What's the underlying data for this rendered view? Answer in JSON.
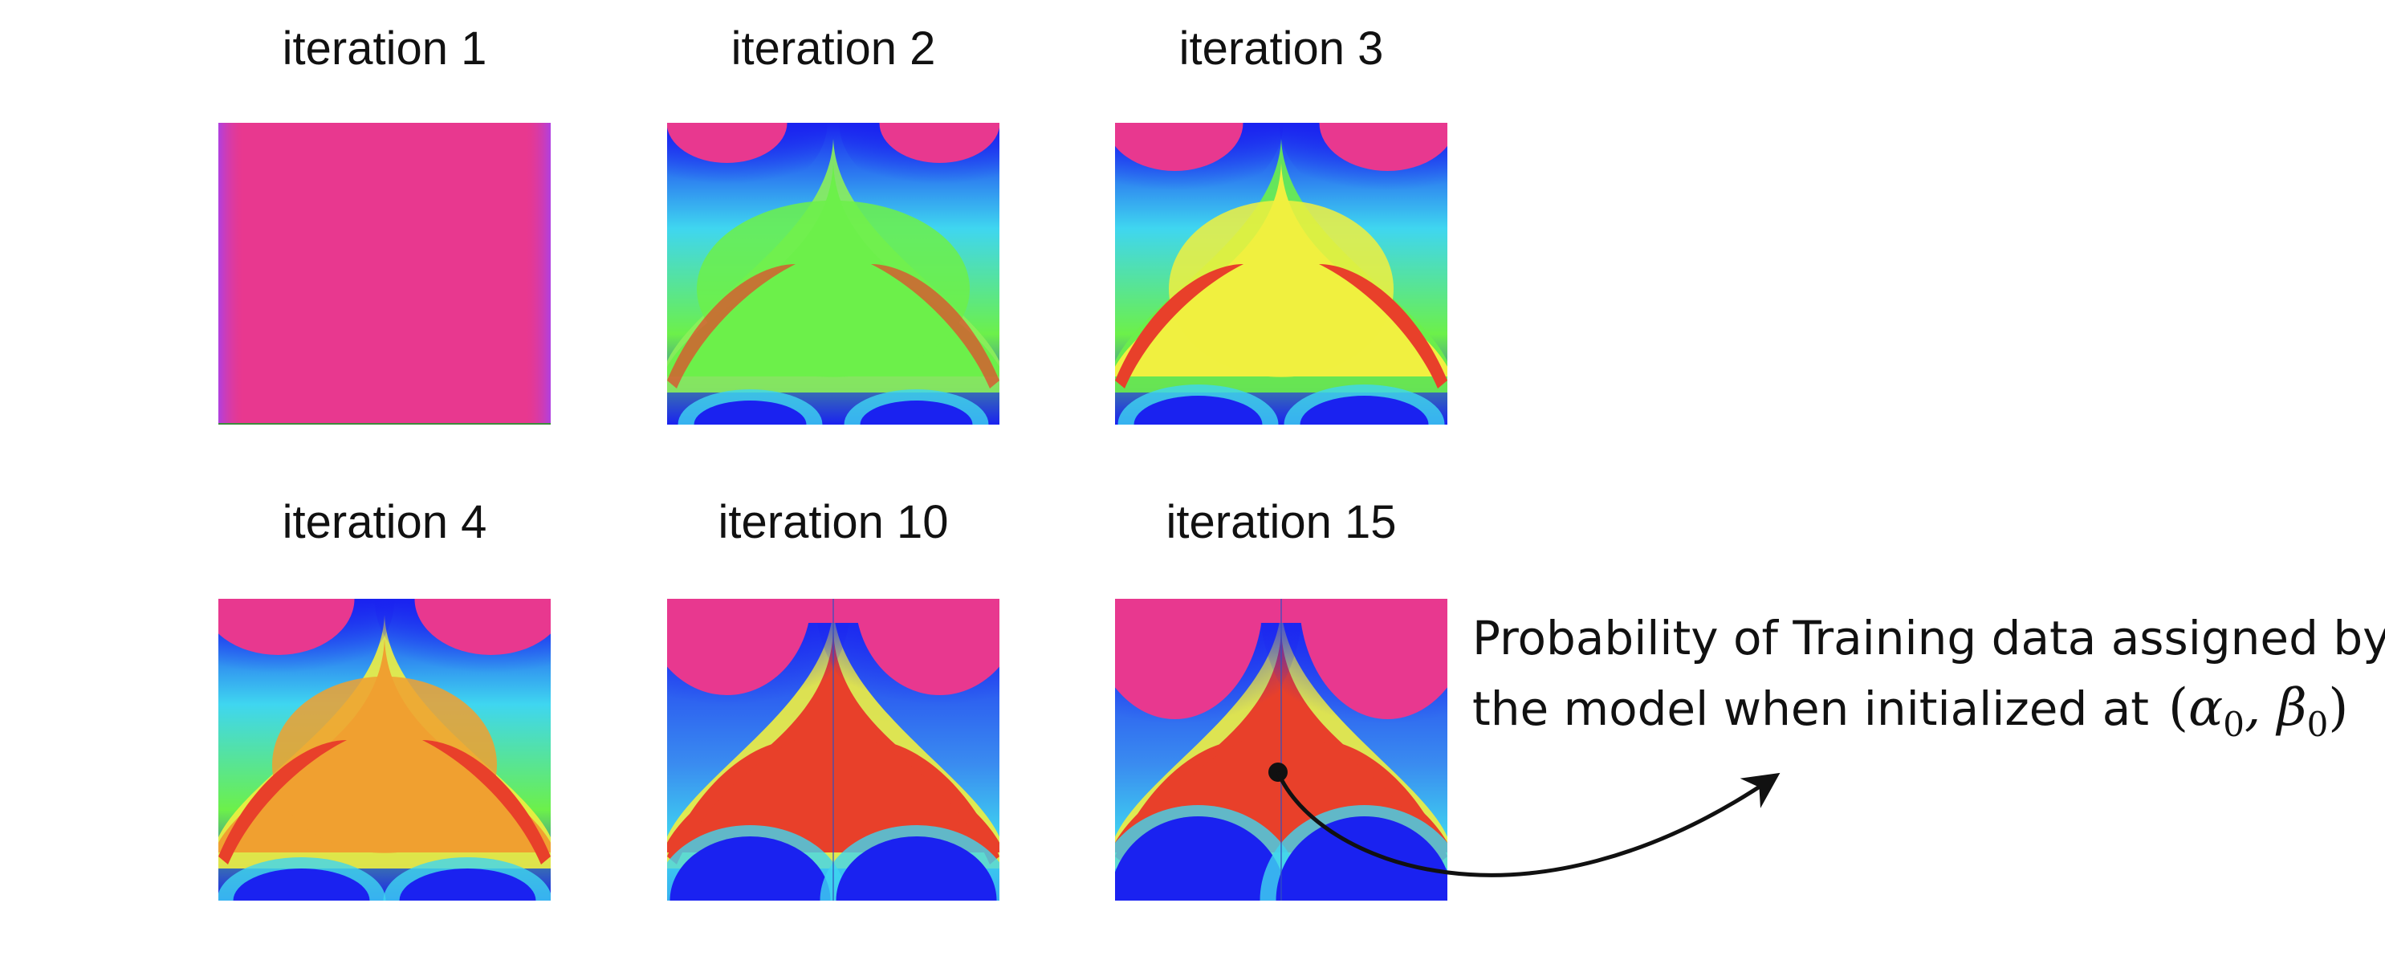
{
  "panels": [
    {
      "title": "iteration 1",
      "stage": 0
    },
    {
      "title": "iteration 2",
      "stage": 1
    },
    {
      "title": "iteration 3",
      "stage": 2
    },
    {
      "title": "iteration 4",
      "stage": 3
    },
    {
      "title": "iteration 10",
      "stage": 4
    },
    {
      "title": "iteration 15",
      "stage": 5
    }
  ],
  "annotation": {
    "line1": "Probability of Training data assigned by",
    "line2": "the model when initialized at",
    "math": "(α0, β0)"
  },
  "colors": {
    "magenta": "#e8388f",
    "blue": "#1a22f0",
    "cyan": "#3fd6f0",
    "green": "#6cf04a",
    "yellow": "#f0f040",
    "orange": "#f0a030",
    "red": "#e8402a",
    "ink": "#111111"
  }
}
